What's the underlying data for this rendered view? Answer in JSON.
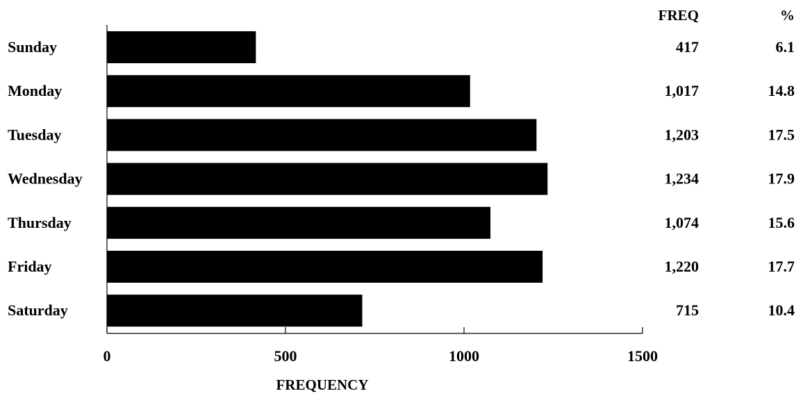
{
  "chart_data": {
    "type": "bar",
    "orientation": "horizontal",
    "categories": [
      "Sunday",
      "Monday",
      "Tuesday",
      "Wednesday",
      "Thursday",
      "Friday",
      "Saturday"
    ],
    "values": [
      417,
      1017,
      1203,
      1234,
      1074,
      1220,
      715
    ],
    "table": {
      "headers": [
        "FREQ",
        "%"
      ],
      "freq": [
        "417",
        "1,017",
        "1,203",
        "1,234",
        "1,074",
        "1,220",
        "715"
      ],
      "percent": [
        "6.1",
        "14.8",
        "17.5",
        "17.9",
        "15.6",
        "17.7",
        "10.4"
      ]
    },
    "title": "",
    "xlabel": "FREQUENCY",
    "ylabel": "",
    "xlim": [
      0,
      1500
    ],
    "x_ticks": [
      0,
      500,
      1000,
      1500
    ],
    "x_tick_labels": [
      "0",
      "500",
      "1000",
      "1500"
    ],
    "grid": false,
    "legend": "none",
    "bar_color": "#000000"
  }
}
